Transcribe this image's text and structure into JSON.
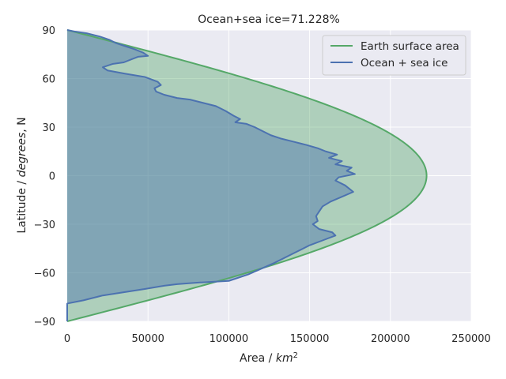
{
  "chart_data": {
    "type": "line",
    "title": "Ocean+sea ice=71.228%",
    "xlabel_prefix": "Area / ",
    "xlabel_var": "km",
    "xlabel_exp": "2",
    "ylabel_prefix": "Latitude / ",
    "ylabel_var": "degrees",
    "ylabel_suffix": ", N",
    "xlim": [
      0,
      250000
    ],
    "ylim": [
      -90,
      90
    ],
    "xticks": [
      0,
      50000,
      100000,
      150000,
      200000,
      250000
    ],
    "yticks": [
      -90,
      -60,
      -30,
      0,
      30,
      60,
      90
    ],
    "grid": true,
    "legend_placement": "upper right",
    "colors": {
      "earth": "#55a868",
      "ocean": "#4c72b0",
      "background": "#eaeaf2",
      "grid": "#ffffff"
    },
    "series": [
      {
        "name": "Earth surface area",
        "formula_max": 222390,
        "note_shape": "cosine of latitude"
      },
      {
        "name": "Ocean + sea ice",
        "points": [
          [
            0,
            90
          ],
          [
            5000,
            89
          ],
          [
            12000,
            88
          ],
          [
            20000,
            86
          ],
          [
            26000,
            84
          ],
          [
            30000,
            82
          ],
          [
            36000,
            80
          ],
          [
            42000,
            78
          ],
          [
            47000,
            76
          ],
          [
            50000,
            74
          ],
          [
            44000,
            73.5
          ],
          [
            40000,
            72
          ],
          [
            35000,
            70
          ],
          [
            28000,
            69
          ],
          [
            22000,
            67
          ],
          [
            25000,
            65
          ],
          [
            36000,
            63
          ],
          [
            48000,
            61
          ],
          [
            56000,
            58
          ],
          [
            58000,
            56
          ],
          [
            54000,
            54
          ],
          [
            55000,
            52
          ],
          [
            60000,
            50
          ],
          [
            68000,
            48
          ],
          [
            76000,
            47
          ],
          [
            84000,
            45
          ],
          [
            92000,
            43
          ],
          [
            98000,
            40
          ],
          [
            103000,
            37
          ],
          [
            107000,
            35
          ],
          [
            104000,
            33
          ],
          [
            111000,
            32
          ],
          [
            116000,
            30
          ],
          [
            120000,
            28
          ],
          [
            126000,
            25
          ],
          [
            132000,
            23
          ],
          [
            140000,
            21
          ],
          [
            148000,
            19
          ],
          [
            155000,
            17
          ],
          [
            160000,
            15
          ],
          [
            167000,
            13
          ],
          [
            162000,
            11
          ],
          [
            170000,
            9
          ],
          [
            166000,
            7
          ],
          [
            176000,
            5
          ],
          [
            173000,
            3
          ],
          [
            178000,
            1
          ],
          [
            168000,
            -1
          ],
          [
            166000,
            -3
          ],
          [
            172000,
            -6
          ],
          [
            177000,
            -10
          ],
          [
            170000,
            -13
          ],
          [
            163000,
            -16
          ],
          [
            158000,
            -19
          ],
          [
            156000,
            -22
          ],
          [
            154000,
            -25
          ],
          [
            155000,
            -28
          ],
          [
            152000,
            -30
          ],
          [
            156000,
            -33
          ],
          [
            164000,
            -35
          ],
          [
            166000,
            -37
          ],
          [
            158000,
            -40
          ],
          [
            150000,
            -43
          ],
          [
            140000,
            -48
          ],
          [
            128000,
            -54
          ],
          [
            112000,
            -61
          ],
          [
            100000,
            -65
          ],
          [
            82000,
            -66
          ],
          [
            68000,
            -67
          ],
          [
            60000,
            -68
          ],
          [
            48000,
            -70
          ],
          [
            35000,
            -72
          ],
          [
            22000,
            -74
          ],
          [
            10000,
            -77
          ],
          [
            0,
            -79
          ],
          [
            0,
            -90
          ]
        ]
      }
    ]
  }
}
